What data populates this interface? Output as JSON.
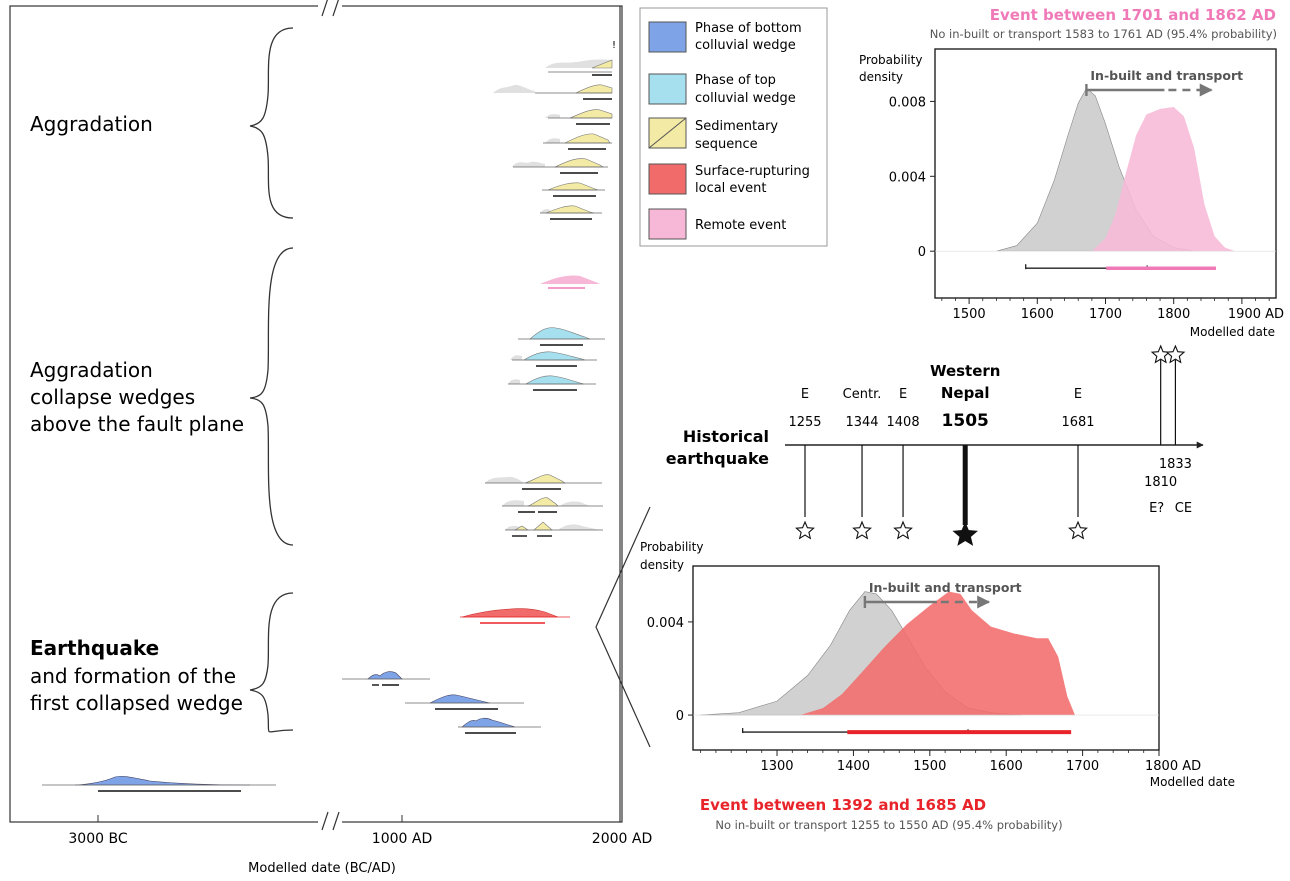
{
  "colors": {
    "bottom_wedge": "#7ea3e6",
    "top_wedge": "#a6e0ef",
    "sedimentary": "#f3eaa6",
    "local_event": "#f26b6b",
    "remote_event": "#f7b8d7",
    "prior_grey": "#cfcfcf",
    "pink_title": "#f07ab8",
    "red_title": "#e8242a"
  },
  "main_axis": {
    "tick_labels": [
      "3000 BC",
      "1000 AD",
      "2000 AD"
    ],
    "xlabel": "Modelled date (BC/AD)"
  },
  "groups": [
    {
      "lines": [
        {
          "text": "Aggradation",
          "bold": false
        }
      ]
    },
    {
      "lines": [
        {
          "text": "Aggradation",
          "bold": false
        },
        {
          "text": "collapse wedges",
          "bold": false
        },
        {
          "text": "above the fault plane",
          "bold": false
        }
      ]
    },
    {
      "lines": [
        {
          "text": "Earthquake",
          "bold": true
        },
        {
          "text": "and formation of the",
          "bold": false
        },
        {
          "text": "first collapsed wedge",
          "bold": false
        }
      ]
    }
  ],
  "legend": [
    {
      "label1": "Phase of bottom",
      "label2": "colluvial wedge",
      "color": "#7ea3e6",
      "icon": "solid-swatch"
    },
    {
      "label1": "Phase of  top",
      "label2": "colluvial wedge",
      "color": "#a6e0ef",
      "icon": "solid-swatch"
    },
    {
      "label1": "Sedimentary",
      "label2": "sequence",
      "color": "#f3eaa6",
      "icon": "diagonal-swatch"
    },
    {
      "label1": "Surface-rupturing",
      "label2": "local event",
      "color": "#f26b6b",
      "icon": "solid-swatch"
    },
    {
      "label1": "Remote event",
      "label2": "",
      "color": "#f7b8d7",
      "icon": "solid-swatch"
    }
  ],
  "chart_data": [
    {
      "type": "area",
      "title": "Event between 1701 and 1862 AD",
      "subtitle": "No in-built or transport 1583 to 1761 AD (95.4% probability)",
      "ylabel_lines": [
        "Probability",
        "density"
      ],
      "xlabel": "Modelled date",
      "xlim": [
        1450,
        1950
      ],
      "ylim": [
        -0.0025,
        0.0108
      ],
      "x_ticks": [
        1500,
        1600,
        1700,
        1800,
        1900
      ],
      "x_tick_labels": [
        "1500",
        "1600",
        "1700",
        "1800",
        "1900 AD"
      ],
      "y_ticks": [
        0,
        0.004,
        0.008
      ],
      "y_tick_labels": [
        "0",
        "0.004",
        "0.008"
      ],
      "annotation": "In-built and transport",
      "series": [
        {
          "role": "prior",
          "color": "#cfcfcf",
          "x": [
            1540,
            1570,
            1600,
            1625,
            1645,
            1660,
            1672,
            1685,
            1700,
            1720,
            1745,
            1770,
            1800,
            1830
          ],
          "y": [
            0,
            0.0003,
            0.0015,
            0.0038,
            0.0062,
            0.0079,
            0.0087,
            0.0083,
            0.0068,
            0.0045,
            0.0022,
            0.0008,
            0.0002,
            0
          ]
        },
        {
          "role": "event",
          "color": "#f7b8d7",
          "x": [
            1680,
            1700,
            1715,
            1730,
            1745,
            1760,
            1780,
            1800,
            1815,
            1830,
            1845,
            1860,
            1875,
            1890
          ],
          "y": [
            0,
            0.0007,
            0.002,
            0.0042,
            0.0062,
            0.0073,
            0.0076,
            0.0077,
            0.0072,
            0.0055,
            0.0025,
            0.0008,
            0.0002,
            0
          ]
        }
      ],
      "ranges": [
        {
          "role": "prior",
          "from": 1583,
          "to": 1761,
          "marker": 1761,
          "color": "#222222"
        },
        {
          "role": "event",
          "from": 1701,
          "to": 1862,
          "color": "#f07ab8"
        }
      ],
      "arrow_start": 1672
    },
    {
      "type": "area",
      "title": "Event between 1392 and 1685 AD",
      "subtitle": "No in-built or transport 1255 to 1550 AD  (95.4% probability)",
      "ylabel_lines": [
        "Probability",
        "density"
      ],
      "xlabel": "Modelled date",
      "xlim": [
        1190,
        1800
      ],
      "ylim": [
        -0.0015,
        0.0064
      ],
      "x_ticks": [
        1300,
        1400,
        1500,
        1600,
        1700,
        1800
      ],
      "x_tick_labels": [
        "1300",
        "1400",
        "1500",
        "1600",
        "1700",
        "1800 AD"
      ],
      "y_ticks": [
        0,
        0.004
      ],
      "y_tick_labels": [
        "0",
        "0.004"
      ],
      "annotation": "In-built and transport",
      "series": [
        {
          "role": "prior",
          "color": "#cfcfcf",
          "x": [
            1200,
            1250,
            1300,
            1340,
            1370,
            1395,
            1415,
            1430,
            1450,
            1470,
            1495,
            1520,
            1550,
            1580,
            1620
          ],
          "y": [
            0,
            0.0001,
            0.0006,
            0.0017,
            0.003,
            0.0045,
            0.0053,
            0.0052,
            0.0045,
            0.0034,
            0.002,
            0.001,
            0.0003,
            0.0001,
            0
          ]
        },
        {
          "role": "event",
          "color": "#f26b6b",
          "x": [
            1330,
            1360,
            1385,
            1410,
            1440,
            1470,
            1500,
            1525,
            1540,
            1555,
            1580,
            1610,
            1640,
            1655,
            1668,
            1680,
            1690
          ],
          "y": [
            0,
            0.0003,
            0.0009,
            0.0018,
            0.0029,
            0.0039,
            0.0047,
            0.0053,
            0.0052,
            0.0045,
            0.0038,
            0.0035,
            0.0033,
            0.0033,
            0.0025,
            0.0008,
            0
          ]
        }
      ],
      "ranges": [
        {
          "role": "prior",
          "from": 1255,
          "to": 1550,
          "marker": 1550,
          "color": "#222222"
        },
        {
          "role": "event",
          "from": 1392,
          "to": 1685,
          "color": "#e8242a"
        }
      ],
      "arrow_start": 1415
    }
  ],
  "timeline": {
    "title_lines": [
      "Historical",
      "earthquake"
    ],
    "events": [
      {
        "year": "1255",
        "tag": "E",
        "x": 1255,
        "major": false
      },
      {
        "year": "1344",
        "tag": "Centr.",
        "x": 1344,
        "major": false
      },
      {
        "year": "1408",
        "tag": "E",
        "x": 1408,
        "major": false
      },
      {
        "year": "1505",
        "tag": "Western\nNepal",
        "x": 1505,
        "major": true
      },
      {
        "year": "1681",
        "tag": "E",
        "x": 1681,
        "major": false
      },
      {
        "year": "1810",
        "tag": "E?",
        "x": 1810,
        "major": false,
        "below": true
      },
      {
        "year": "1833",
        "tag": "CE",
        "x": 1833,
        "major": false,
        "below": true
      }
    ]
  }
}
